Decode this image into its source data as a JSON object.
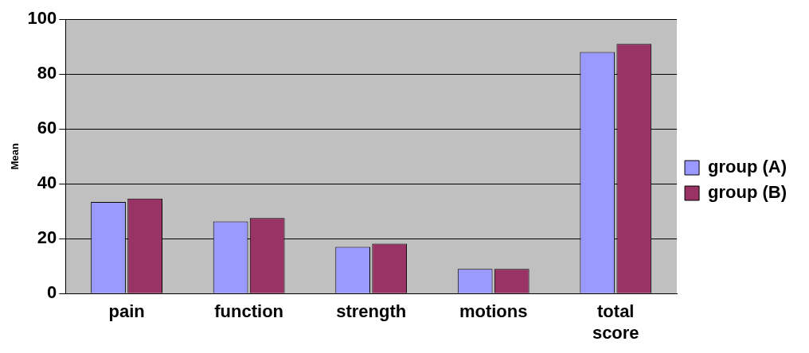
{
  "chart_data": {
    "type": "bar",
    "ylabel": "Mean",
    "categories": [
      "pain",
      "function",
      "strength",
      "motions",
      "total score"
    ],
    "series": [
      {
        "name": "group (A)",
        "color": "#9999ff",
        "values": [
          33.4,
          26.3,
          17,
          9,
          88
        ]
      },
      {
        "name": "group (B)",
        "color": "#993366",
        "values": [
          34.6,
          27.5,
          18.2,
          9,
          91
        ]
      }
    ],
    "ylim": [
      0,
      100
    ],
    "yticks": [
      0,
      20,
      40,
      60,
      80,
      100
    ],
    "grid": "y",
    "legend": "right"
  }
}
